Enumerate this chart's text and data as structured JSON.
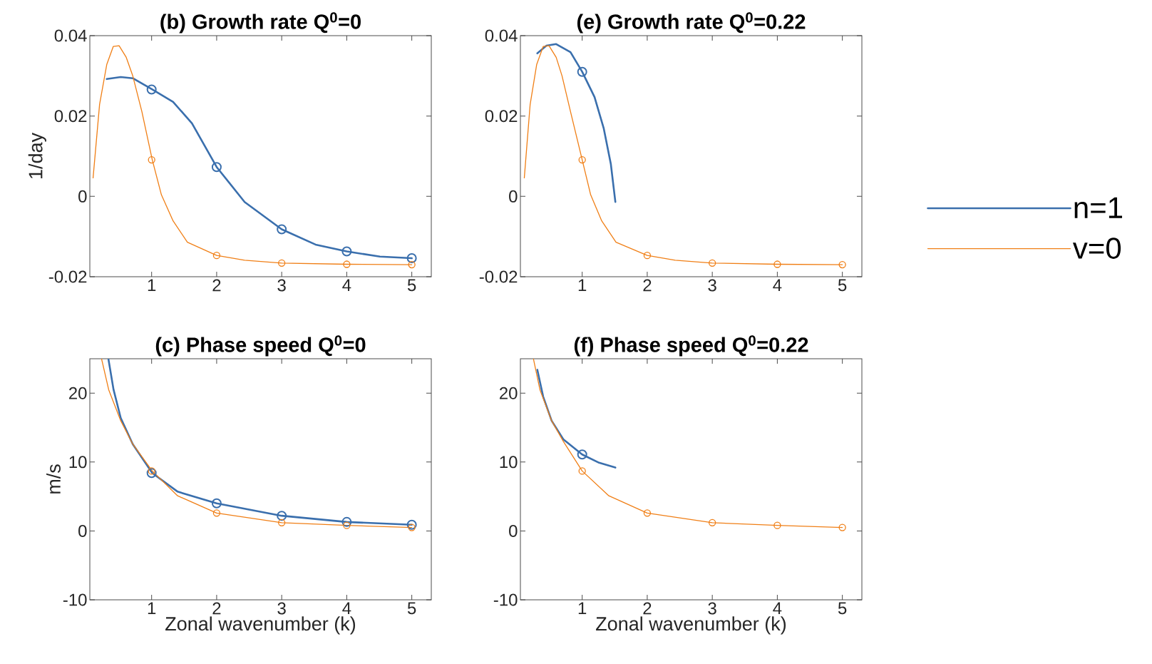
{
  "chart_data": [
    {
      "type": "line",
      "title": "(b) Growth rate Q$^{0}$=0",
      "ylabel": "1/day",
      "xlim": [
        0.05,
        5.3
      ],
      "ylim": [
        -0.02,
        0.04
      ],
      "xticks": [
        1,
        2,
        3,
        4,
        5
      ],
      "yticks": [
        -0.02,
        0,
        0.02,
        0.04
      ],
      "series": [
        {
          "color": "#3a6fad",
          "x": [
            0.31,
            0.525,
            0.71,
            1.01,
            1.33,
            1.62,
            2.0,
            2.43,
            3.0,
            3.52,
            4.0,
            4.51,
            5.0
          ],
          "values": [
            0.0292,
            0.0297,
            0.0294,
            0.0266,
            0.0235,
            0.0182,
            0.0073,
            -0.0014,
            -0.0082,
            -0.012,
            -0.0137,
            -0.015,
            -0.0154
          ]
        },
        {
          "color": "#f07f16",
          "x": [
            0.1,
            0.2,
            0.31,
            0.41,
            0.5,
            0.61,
            0.71,
            0.85,
            1.01,
            1.15,
            1.33,
            1.55,
            2.0,
            2.43,
            3.0,
            4.0,
            5.0
          ],
          "values": [
            0.0046,
            0.0229,
            0.0328,
            0.0373,
            0.0375,
            0.0346,
            0.03,
            0.0211,
            0.0091,
            0.0004,
            -0.0061,
            -0.0114,
            -0.0147,
            -0.0159,
            -0.0166,
            -0.0169,
            -0.017
          ]
        },
        {
          "type": "scatter",
          "marker": "circle",
          "color": "#3a6fad",
          "x": [
            1,
            2,
            3,
            4,
            5
          ],
          "values": [
            0.0266,
            0.0073,
            -0.0082,
            -0.0137,
            -0.0154
          ]
        },
        {
          "type": "scatter",
          "marker": "circle",
          "color": "#f07f16",
          "x": [
            1,
            2,
            3,
            4,
            5
          ],
          "values": [
            0.0091,
            -0.0147,
            -0.0166,
            -0.0169,
            -0.017
          ]
        }
      ]
    },
    {
      "type": "line",
      "title": "(e) Growth rate Q$^{0}$=0.22",
      "xlim": [
        0.05,
        5.3
      ],
      "ylim": [
        -0.02,
        0.04
      ],
      "xticks": [
        1,
        2,
        3,
        4,
        5
      ],
      "yticks": [
        -0.02,
        0,
        0.02,
        0.04
      ],
      "legend": "right",
      "series": [
        {
          "name": "n=1",
          "color": "#3a6fad",
          "x": [
            0.31,
            0.45,
            0.6,
            0.82,
            1.0,
            1.19,
            1.33,
            1.44,
            1.51
          ],
          "values": [
            0.0356,
            0.0375,
            0.0379,
            0.0359,
            0.031,
            0.0247,
            0.017,
            0.0081,
            -0.0014
          ]
        },
        {
          "name": "v=0",
          "color": "#f07f16",
          "x": [
            0.11,
            0.2,
            0.3,
            0.4,
            0.49,
            0.6,
            0.69,
            0.82,
            1.0,
            1.13,
            1.3,
            1.52,
            2.0,
            2.43,
            3.0,
            4.0,
            5.0
          ],
          "values": [
            0.0046,
            0.0229,
            0.0328,
            0.0373,
            0.0375,
            0.0346,
            0.03,
            0.0211,
            0.0091,
            0.0004,
            -0.0061,
            -0.0114,
            -0.0147,
            -0.0159,
            -0.0166,
            -0.0169,
            -0.017
          ]
        },
        {
          "type": "scatter",
          "marker": "circle",
          "color": "#3a6fad",
          "x": [
            1
          ],
          "values": [
            0.031
          ]
        },
        {
          "type": "scatter",
          "marker": "circle",
          "color": "#f07f16",
          "x": [
            1,
            2,
            3,
            4,
            5
          ],
          "values": [
            0.0091,
            -0.0147,
            -0.0166,
            -0.0169,
            -0.017
          ]
        }
      ]
    },
    {
      "type": "line",
      "title": "(c) Phase speed Q$^{0}$=0",
      "xlabel": "Zonal wavenumber (k)",
      "ylabel": "m/s",
      "xlim": [
        0.05,
        5.3
      ],
      "ylim": [
        -10,
        25
      ],
      "xticks": [
        1,
        2,
        3,
        4,
        5
      ],
      "yticks": [
        -10,
        0,
        10,
        20
      ],
      "series": [
        {
          "color": "#3a6fad",
          "x": [
            0.335,
            0.415,
            0.525,
            0.71,
            1.01,
            1.4,
            2.0,
            3.0,
            4.0,
            5.0
          ],
          "values": [
            25,
            20.5,
            16.4,
            12.6,
            8.4,
            5.7,
            4.0,
            2.2,
            1.3,
            0.9
          ]
        },
        {
          "color": "#f07f16",
          "x": [
            0.23,
            0.34,
            0.525,
            0.71,
            1.01,
            1.4,
            2.0,
            3.0,
            4.0,
            5.0
          ],
          "values": [
            25,
            20.5,
            16.0,
            12.6,
            8.7,
            5.1,
            2.6,
            1.2,
            0.8,
            0.5
          ]
        },
        {
          "type": "scatter",
          "marker": "circle",
          "color": "#3a6fad",
          "x": [
            1,
            2,
            3,
            4,
            5
          ],
          "values": [
            8.4,
            4.0,
            2.2,
            1.3,
            0.9
          ]
        },
        {
          "type": "scatter",
          "marker": "circle",
          "color": "#f07f16",
          "x": [
            1,
            2,
            3,
            4,
            5
          ],
          "values": [
            8.7,
            2.6,
            1.2,
            0.8,
            0.5
          ]
        }
      ]
    },
    {
      "type": "line",
      "title": "(f) Phase speed Q$^{0}$=0.22",
      "xlabel": "Zonal wavenumber (k)",
      "xlim": [
        0.05,
        5.3
      ],
      "ylim": [
        -10,
        25
      ],
      "xticks": [
        1,
        2,
        3,
        4,
        5
      ],
      "yticks": [
        -10,
        0,
        10,
        20
      ],
      "series": [
        {
          "color": "#3a6fad",
          "x": [
            0.31,
            0.4,
            0.53,
            0.71,
            1.0,
            1.26,
            1.51
          ],
          "values": [
            23.4,
            19.5,
            16.0,
            13.3,
            11.1,
            9.9,
            9.2
          ]
        },
        {
          "color": "#f07f16",
          "x": [
            0.25,
            0.35,
            0.53,
            0.71,
            1.0,
            1.41,
            2.0,
            3.0,
            4.0,
            5.0
          ],
          "values": [
            25,
            20.5,
            16.0,
            13.0,
            8.7,
            5.1,
            2.6,
            1.2,
            0.8,
            0.5
          ]
        },
        {
          "type": "scatter",
          "marker": "circle",
          "color": "#3a6fad",
          "x": [
            1
          ],
          "values": [
            11.1
          ]
        },
        {
          "type": "scatter",
          "marker": "circle",
          "color": "#f07f16",
          "x": [
            1,
            2,
            3,
            4,
            5
          ],
          "values": [
            8.7,
            2.6,
            1.2,
            0.8,
            0.5
          ]
        }
      ]
    }
  ]
}
